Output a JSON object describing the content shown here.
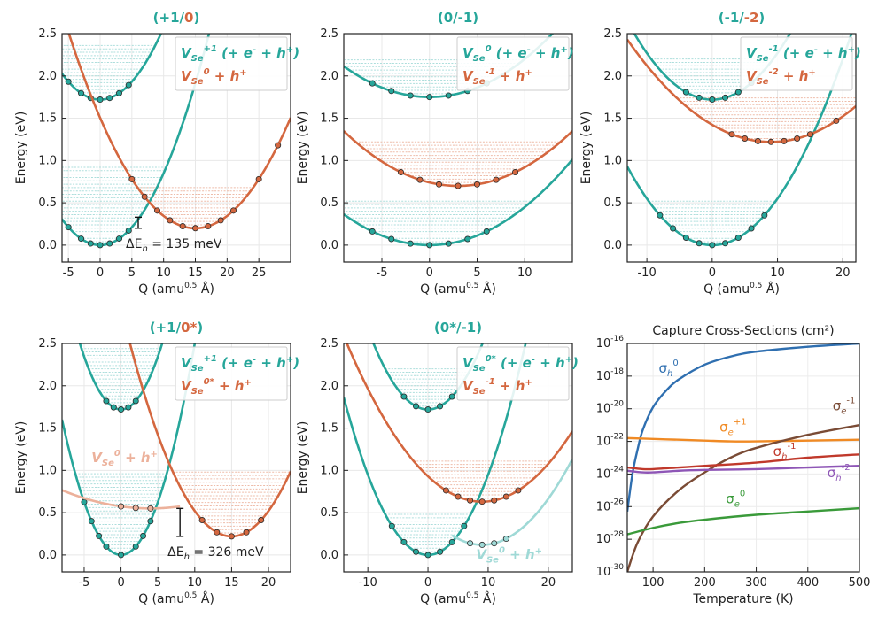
{
  "figure": {
    "colors": {
      "teal": "#26a69a",
      "orange": "#d4673f",
      "light_teal": "#9fd9d6",
      "light_orange": "#ecb19b"
    }
  },
  "chart_data": [
    {
      "type": "line",
      "panel": "a",
      "title": {
        "left": "(+1/",
        "right": "0",
        "close": ")"
      },
      "xlabel": "Q (amu",
      "xlabel_sup": "0.5",
      "xlabel_end": " Å)",
      "ylabel": "Energy (eV)",
      "xlim": [
        -6,
        30
      ],
      "ylim": [
        -0.2,
        2.5
      ],
      "xticks": [
        -5,
        0,
        5,
        10,
        15,
        20,
        25
      ],
      "yticks": [
        0.0,
        0.5,
        1.0,
        1.5,
        2.0,
        2.5
      ],
      "curves": [
        {
          "name": "lower_teal",
          "color": "teal",
          "q0": 0,
          "e0": 0.0,
          "k": 0.0085,
          "range": [
            -6,
            30
          ],
          "fill_top": 0.95,
          "dots": [
            -5,
            -3,
            -1.5,
            0,
            1.5,
            3,
            4.5
          ]
        },
        {
          "name": "upper_teal",
          "color": "teal",
          "q0": 0,
          "e0": 1.72,
          "k": 0.0085,
          "range": [
            -6,
            30
          ],
          "fill_top": 2.4,
          "dots": [
            -5,
            -3,
            -1.5,
            0,
            1.5,
            3,
            4.5
          ]
        },
        {
          "name": "orange",
          "color": "orange",
          "q0": 15,
          "e0": 0.2,
          "k": 0.0058,
          "range": [
            -6,
            30
          ],
          "fill_top": 0.72,
          "dots": [
            5,
            7,
            9,
            11,
            13,
            15,
            17,
            19,
            21,
            25,
            28
          ]
        }
      ],
      "legend": [
        {
          "main": "V",
          "sub": "Se",
          "sup": "+1",
          "rest": " (+ e",
          "sup2": "-",
          "rest2": " + h",
          "sup3": "+",
          "rest3": ")",
          "color": "teal"
        },
        {
          "main": "V",
          "sub": "Se",
          "sup": "0",
          "rest": " + h",
          "sup2": "+",
          "rest2": "",
          "sup3": "",
          "rest3": "",
          "color": "orange"
        }
      ],
      "annotation": {
        "text_pre": "ΔE",
        "text_sub": "h",
        "text_post": " = 135 meV",
        "q": 6.0,
        "e_low": 0.2,
        "e_high": 0.33
      }
    },
    {
      "type": "line",
      "panel": "b",
      "title": {
        "left": "(0/-1)",
        "right": "",
        "close": ""
      },
      "xlabel": "Q (amu",
      "xlabel_sup": "0.5",
      "xlabel_end": " Å)",
      "ylabel": "Energy (eV)",
      "xlim": [
        -9,
        15
      ],
      "ylim": [
        -0.2,
        2.5
      ],
      "xticks": [
        -5,
        0,
        5,
        10
      ],
      "yticks": [
        0.0,
        0.5,
        1.0,
        1.5,
        2.0,
        2.5
      ],
      "curves": [
        {
          "name": "lower_teal",
          "color": "teal",
          "q0": 0,
          "e0": 0.0,
          "k": 0.0045,
          "range": [
            -9,
            15
          ],
          "fill_top": 0.52,
          "dots": [
            -6,
            -4,
            -2,
            0,
            2,
            4,
            6
          ]
        },
        {
          "name": "upper_teal",
          "color": "teal",
          "q0": 0,
          "e0": 1.75,
          "k": 0.0045,
          "range": [
            -9,
            15
          ],
          "fill_top": 2.22,
          "dots": [
            -6,
            -4,
            -2,
            0,
            2,
            4,
            6
          ]
        },
        {
          "name": "orange",
          "color": "orange",
          "q0": 3,
          "e0": 0.7,
          "k": 0.0045,
          "range": [
            -9,
            15
          ],
          "fill_top": 1.25,
          "dots": [
            -3,
            -1,
            1,
            3,
            5,
            7,
            9
          ]
        }
      ],
      "legend": [
        {
          "main": "V",
          "sub": "Se",
          "sup": "0",
          "rest": " (+ e",
          "sup2": "-",
          "rest2": " + h",
          "sup3": "+",
          "rest3": ")",
          "color": "teal"
        },
        {
          "main": "V",
          "sub": "Se",
          "sup": "-1",
          "rest": " + h",
          "sup2": "+",
          "rest2": "",
          "sup3": "",
          "rest3": "",
          "color": "orange"
        }
      ]
    },
    {
      "type": "line",
      "panel": "c",
      "title": {
        "left": "(-1/",
        "right": "-2",
        "close": ")"
      },
      "xlabel": "Q (amu",
      "xlabel_sup": "0.5",
      "xlabel_end": " Å)",
      "ylabel": "Energy (eV)",
      "xlim": [
        -13,
        22
      ],
      "ylim": [
        -0.2,
        2.5
      ],
      "xticks": [
        -10,
        0,
        10,
        20
      ],
      "yticks": [
        0.0,
        0.5,
        1.0,
        1.5,
        2.0,
        2.5
      ],
      "curves": [
        {
          "name": "lower_teal",
          "color": "teal",
          "q0": 0,
          "e0": 0.0,
          "k": 0.0055,
          "range": [
            -13,
            22
          ],
          "fill_top": 0.52,
          "dots": [
            -8,
            -6,
            -4,
            -2,
            0,
            2,
            4,
            6,
            8
          ]
        },
        {
          "name": "upper_teal",
          "color": "teal",
          "q0": 0,
          "e0": 1.72,
          "k": 0.0055,
          "range": [
            -13,
            22
          ],
          "fill_top": 2.2,
          "dots": [
            -4,
            -2,
            0,
            2,
            4,
            6
          ]
        },
        {
          "name": "orange",
          "color": "orange",
          "q0": 9,
          "e0": 1.22,
          "k": 0.0025,
          "range": [
            -13,
            22
          ],
          "fill_top": 1.75,
          "dots": [
            3,
            5,
            7,
            9,
            11,
            13,
            15,
            19
          ]
        }
      ],
      "legend": [
        {
          "main": "V",
          "sub": "Se",
          "sup": "-1",
          "rest": " (+ e",
          "sup2": "-",
          "rest2": " + h",
          "sup3": "+",
          "rest3": ")",
          "color": "teal"
        },
        {
          "main": "V",
          "sub": "Se",
          "sup": "-2",
          "rest": " + h",
          "sup2": "+",
          "rest2": "",
          "sup3": "",
          "rest3": "",
          "color": "orange"
        }
      ]
    },
    {
      "type": "line",
      "panel": "d",
      "title": {
        "left": "(+1/",
        "right": "0*",
        "close": ")"
      },
      "xlabel": "Q (amu",
      "xlabel_sup": "0.5",
      "xlabel_end": " Å)",
      "ylabel": "Energy (eV)",
      "xlim": [
        -8,
        23
      ],
      "ylim": [
        -0.2,
        2.5
      ],
      "xticks": [
        -5,
        0,
        5,
        10,
        15,
        20
      ],
      "yticks": [
        0.0,
        0.5,
        1.0,
        1.5,
        2.0,
        2.5
      ],
      "curves": [
        {
          "name": "lower_teal",
          "color": "teal",
          "q0": 0,
          "e0": 0.0,
          "k": 0.025,
          "range": [
            -8,
            23
          ],
          "fill_top": 1.0,
          "dots": [
            -5,
            -4,
            -3,
            -2,
            0,
            2,
            3,
            4
          ]
        },
        {
          "name": "upper_teal",
          "color": "teal",
          "q0": 0,
          "e0": 1.72,
          "k": 0.025,
          "range": [
            -8,
            23
          ],
          "fill_top": 2.45,
          "dots": [
            -2,
            -1,
            0,
            1,
            2
          ]
        },
        {
          "name": "orange",
          "color": "orange",
          "q0": 15,
          "e0": 0.22,
          "k": 0.012,
          "range": [
            -8,
            23
          ],
          "fill_top": 1.0,
          "dots": [
            11,
            13,
            15,
            17,
            19
          ]
        },
        {
          "name": "faded_orange",
          "color": "light_orange",
          "q0": 4,
          "e0": 0.55,
          "k": 0.0015,
          "range": [
            -8,
            8
          ],
          "fill_top": null,
          "dots": [
            0,
            2,
            4
          ]
        }
      ],
      "legend": [
        {
          "main": "V",
          "sub": "Se",
          "sup": "+1",
          "rest": " (+ e",
          "sup2": "-",
          "rest2": " + h",
          "sup3": "+",
          "rest3": ")",
          "color": "teal"
        },
        {
          "main": "V",
          "sub": "Se",
          "sup": "0*",
          "rest": " + h",
          "sup2": "+",
          "rest2": "",
          "sup3": "",
          "rest3": "",
          "color": "orange"
        }
      ],
      "extra_label": {
        "main": "V",
        "sub": "Se",
        "sup": "0",
        "rest": " + h",
        "sup2": "+",
        "color": "light_orange"
      },
      "annotation": {
        "text_pre": "ΔE",
        "text_sub": "h",
        "text_post": " = 326 meV",
        "q": 8.0,
        "e_low": 0.22,
        "e_high": 0.55
      }
    },
    {
      "type": "line",
      "panel": "e",
      "title": {
        "left": "(0*/-1)",
        "right": "",
        "close": ""
      },
      "xlabel": "Q (amu",
      "xlabel_sup": "0.5",
      "xlabel_end": " Å)",
      "ylabel": "Energy (eV)",
      "xlim": [
        -14,
        24
      ],
      "ylim": [
        -0.2,
        2.5
      ],
      "xticks": [
        -10,
        0,
        10,
        20
      ],
      "yticks": [
        0.0,
        0.5,
        1.0,
        1.5,
        2.0,
        2.5
      ],
      "curves": [
        {
          "name": "lower_teal",
          "color": "teal",
          "q0": 0,
          "e0": 0.0,
          "k": 0.0095,
          "range": [
            -14,
            24
          ],
          "fill_top": 0.5,
          "dots": [
            -6,
            -4,
            -2,
            0,
            2,
            4,
            6
          ]
        },
        {
          "name": "upper_teal",
          "color": "teal",
          "q0": 0,
          "e0": 1.72,
          "k": 0.0095,
          "range": [
            -14,
            24
          ],
          "fill_top": 2.2,
          "dots": [
            -4,
            -2,
            0,
            2,
            4
          ]
        },
        {
          "name": "orange",
          "color": "orange",
          "q0": 9,
          "e0": 0.63,
          "k": 0.0037,
          "range": [
            -14,
            24
          ],
          "fill_top": 1.12,
          "dots": [
            3,
            5,
            7,
            9,
            11,
            13,
            15
          ]
        },
        {
          "name": "faded_teal",
          "color": "light_teal",
          "q0": 9,
          "e0": 0.12,
          "k": 0.0045,
          "range": [
            4,
            24
          ],
          "fill_top": null,
          "dots": [
            7,
            9,
            11,
            13
          ]
        }
      ],
      "legend": [
        {
          "main": "V",
          "sub": "Se",
          "sup": "0*",
          "rest": " (+ e",
          "sup2": "-",
          "rest2": " + h",
          "sup3": "+",
          "rest3": ")",
          "color": "teal"
        },
        {
          "main": "V",
          "sub": "Se",
          "sup": "-1",
          "rest": " + h",
          "sup2": "+",
          "rest2": "",
          "sup3": "",
          "rest3": "",
          "color": "orange"
        }
      ],
      "extra_label": {
        "main": "V",
        "sub": "Se",
        "sup": "0",
        "rest": " + h",
        "sup2": "+",
        "color": "light_teal"
      }
    },
    {
      "type": "line",
      "panel": "f",
      "title": "Capture Cross-Sections (cm²)",
      "xlabel": "Temperature (K)",
      "xlim": [
        50,
        500
      ],
      "ylim_log10": [
        -30,
        -16
      ],
      "xticks": [
        100,
        200,
        300,
        400,
        500
      ],
      "yticks_exp": [
        -30,
        -28,
        -26,
        -24,
        -22,
        -20,
        -18,
        -16
      ],
      "series": [
        {
          "name": "sigma_h0",
          "base": "σ",
          "sub": "h",
          "sup": "0",
          "color": "#2f6fb0",
          "x": [
            50,
            60,
            70,
            80,
            100,
            125,
            150,
            200,
            250,
            300,
            400,
            500
          ],
          "log10_y": [
            -26.3,
            -24.0,
            -22.5,
            -21.3,
            -19.9,
            -18.9,
            -18.2,
            -17.3,
            -16.8,
            -16.5,
            -16.2,
            -16.0
          ]
        },
        {
          "name": "sigma_e+1",
          "base": "σ",
          "sub": "e",
          "sup": "+1",
          "color": "#f08a24",
          "x": [
            50,
            100,
            150,
            200,
            250,
            300,
            400,
            500
          ],
          "log10_y": [
            -21.8,
            -21.85,
            -21.9,
            -21.95,
            -22.0,
            -22.0,
            -21.95,
            -21.9
          ]
        },
        {
          "name": "sigma_e-1",
          "base": "σ",
          "sub": "e",
          "sup": "-1",
          "color": "#7a4b35",
          "x": [
            50,
            70,
            100,
            150,
            200,
            250,
            300,
            400,
            500
          ],
          "log10_y": [
            -30.0,
            -28.2,
            -26.6,
            -25.0,
            -23.9,
            -23.0,
            -22.4,
            -21.6,
            -21.0
          ]
        },
        {
          "name": "sigma_h-1",
          "base": "σ",
          "sub": "h",
          "sup": "-1",
          "color": "#c0392b",
          "x": [
            50,
            80,
            100,
            150,
            200,
            300,
            400,
            500
          ],
          "log10_y": [
            -23.6,
            -23.7,
            -23.7,
            -23.6,
            -23.5,
            -23.3,
            -23.0,
            -22.8
          ]
        },
        {
          "name": "sigma_h-2",
          "base": "σ",
          "sub": "h",
          "sup": "-2",
          "color": "#8e56b6",
          "x": [
            50,
            80,
            100,
            150,
            200,
            300,
            400,
            500
          ],
          "log10_y": [
            -23.8,
            -23.9,
            -23.9,
            -23.8,
            -23.75,
            -23.7,
            -23.6,
            -23.5
          ]
        },
        {
          "name": "sigma_e0",
          "base": "σ",
          "sub": "e",
          "sup": "0",
          "color": "#3a9a3a",
          "x": [
            50,
            100,
            150,
            200,
            300,
            400,
            500
          ],
          "log10_y": [
            -27.7,
            -27.3,
            -27.0,
            -26.8,
            -26.5,
            -26.3,
            -26.1
          ]
        }
      ],
      "label_positions": {
        "sigma_h0": [
          130,
          -17.8
        ],
        "sigma_e+1": [
          255,
          -21.4
        ],
        "sigma_e-1": [
          470,
          -20.1
        ],
        "sigma_h-1": [
          355,
          -22.9
        ],
        "sigma_h-2": [
          460,
          -24.2
        ],
        "sigma_e0": [
          260,
          -25.8
        ]
      }
    }
  ]
}
